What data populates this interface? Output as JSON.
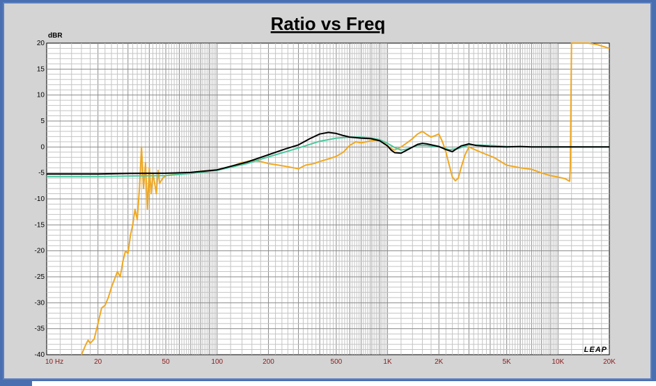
{
  "chart_data": {
    "type": "line",
    "title": "Ratio vs Freq",
    "ylabel": "dBR",
    "xlabel": "",
    "x_scale": "log",
    "xlim": [
      10,
      20000
    ],
    "ylim": [
      -40,
      20
    ],
    "grid": true,
    "legend": "none",
    "watermark": "LEAP",
    "x_ticks": [
      {
        "value": 10,
        "label": "10  Hz"
      },
      {
        "value": 20,
        "label": "20"
      },
      {
        "value": 50,
        "label": "50"
      },
      {
        "value": 100,
        "label": "100"
      },
      {
        "value": 200,
        "label": "200"
      },
      {
        "value": 500,
        "label": "500"
      },
      {
        "value": 1000,
        "label": "1K"
      },
      {
        "value": 2000,
        "label": "2K"
      },
      {
        "value": 5000,
        "label": "5K"
      },
      {
        "value": 10000,
        "label": "10K"
      },
      {
        "value": 20000,
        "label": "20K"
      }
    ],
    "y_ticks": [
      20,
      15,
      10,
      5,
      0,
      -5,
      -10,
      -15,
      -20,
      -25,
      -30,
      -35,
      -40
    ],
    "series": [
      {
        "color": "#f0a820",
        "points": [
          [
            16,
            -40
          ],
          [
            17,
            -38
          ],
          [
            17.5,
            -37.2
          ],
          [
            18,
            -37.8
          ],
          [
            19,
            -37
          ],
          [
            20,
            -34
          ],
          [
            21,
            -31
          ],
          [
            22,
            -30.5
          ],
          [
            23,
            -29
          ],
          [
            24,
            -27
          ],
          [
            25,
            -25.5
          ],
          [
            26,
            -24
          ],
          [
            27,
            -25
          ],
          [
            28,
            -22
          ],
          [
            29,
            -20
          ],
          [
            30,
            -20.5
          ],
          [
            31,
            -17
          ],
          [
            32,
            -15
          ],
          [
            33,
            -12
          ],
          [
            34,
            -14
          ],
          [
            35,
            -8
          ],
          [
            36,
            0
          ],
          [
            37,
            -8
          ],
          [
            38,
            -3
          ],
          [
            39,
            -12
          ],
          [
            40,
            -4
          ],
          [
            41,
            -9
          ],
          [
            42,
            -5
          ],
          [
            44,
            -9
          ],
          [
            45,
            -4.5
          ],
          [
            46,
            -7
          ],
          [
            48,
            -6
          ],
          [
            50,
            -5.5
          ],
          [
            55,
            -5.3
          ],
          [
            60,
            -5.1
          ],
          [
            70,
            -4.9
          ],
          [
            80,
            -4.7
          ],
          [
            100,
            -4.4
          ],
          [
            120,
            -3.8
          ],
          [
            140,
            -3
          ],
          [
            160,
            -2.6
          ],
          [
            180,
            -2.8
          ],
          [
            200,
            -3.2
          ],
          [
            230,
            -3.5
          ],
          [
            260,
            -3.8
          ],
          [
            300,
            -4.2
          ],
          [
            330,
            -3.5
          ],
          [
            370,
            -3.2
          ],
          [
            400,
            -2.8
          ],
          [
            450,
            -2.3
          ],
          [
            500,
            -1.8
          ],
          [
            550,
            -1
          ],
          [
            600,
            0.3
          ],
          [
            650,
            1
          ],
          [
            700,
            0.8
          ],
          [
            750,
            1
          ],
          [
            800,
            1.2
          ],
          [
            850,
            1.3
          ],
          [
            900,
            1.2
          ],
          [
            950,
            0.8
          ],
          [
            1000,
            0.2
          ],
          [
            1050,
            -0.3
          ],
          [
            1100,
            -0.6
          ],
          [
            1200,
            0
          ],
          [
            1300,
            0.8
          ],
          [
            1400,
            1.6
          ],
          [
            1500,
            2.5
          ],
          [
            1600,
            3
          ],
          [
            1700,
            2.4
          ],
          [
            1800,
            1.9
          ],
          [
            1900,
            2.2
          ],
          [
            2000,
            2.5
          ],
          [
            2100,
            1
          ],
          [
            2200,
            -1
          ],
          [
            2300,
            -3.5
          ],
          [
            2400,
            -5.8
          ],
          [
            2500,
            -6.5
          ],
          [
            2600,
            -6
          ],
          [
            2700,
            -4
          ],
          [
            2850,
            -1.5
          ],
          [
            3000,
            0
          ],
          [
            3300,
            -0.6
          ],
          [
            3700,
            -1.3
          ],
          [
            4200,
            -2
          ],
          [
            5000,
            -3.5
          ],
          [
            6000,
            -4
          ],
          [
            7000,
            -4.3
          ],
          [
            8000,
            -5
          ],
          [
            9000,
            -5.5
          ],
          [
            10000,
            -5.8
          ],
          [
            11000,
            -6.1
          ],
          [
            11700,
            -6.6
          ],
          [
            11800,
            -4
          ],
          [
            12000,
            20
          ],
          [
            13000,
            20
          ],
          [
            15000,
            20
          ],
          [
            17000,
            19.7
          ],
          [
            20000,
            19
          ]
        ]
      },
      {
        "color": "#4cc8a0",
        "points": [
          [
            10,
            -5.7
          ],
          [
            20,
            -5.7
          ],
          [
            30,
            -5.6
          ],
          [
            50,
            -5.5
          ],
          [
            70,
            -5.1
          ],
          [
            100,
            -4.5
          ],
          [
            150,
            -3.2
          ],
          [
            200,
            -1.9
          ],
          [
            300,
            -0.2
          ],
          [
            400,
            1.1
          ],
          [
            500,
            1.7
          ],
          [
            600,
            1.9
          ],
          [
            700,
            1.9
          ],
          [
            800,
            1.7
          ],
          [
            900,
            1.4
          ],
          [
            1000,
            0.7
          ],
          [
            1100,
            -0.1
          ],
          [
            1200,
            -0.6
          ],
          [
            1300,
            -0.4
          ],
          [
            1500,
            0.3
          ],
          [
            1700,
            0.3
          ],
          [
            2000,
            0
          ],
          [
            2300,
            -0.5
          ],
          [
            2600,
            -0.3
          ],
          [
            3000,
            0.4
          ],
          [
            4000,
            0.3
          ],
          [
            5000,
            0.1
          ],
          [
            7000,
            0
          ],
          [
            10000,
            0
          ],
          [
            20000,
            0
          ]
        ]
      },
      {
        "color": "#000000",
        "points": [
          [
            10,
            -5.2
          ],
          [
            20,
            -5.2
          ],
          [
            30,
            -5.1
          ],
          [
            50,
            -5.05
          ],
          [
            70,
            -4.9
          ],
          [
            100,
            -4.4
          ],
          [
            150,
            -2.9
          ],
          [
            200,
            -1.5
          ],
          [
            250,
            -0.4
          ],
          [
            300,
            0.4
          ],
          [
            350,
            1.6
          ],
          [
            400,
            2.5
          ],
          [
            450,
            2.8
          ],
          [
            500,
            2.6
          ],
          [
            550,
            2.2
          ],
          [
            600,
            1.9
          ],
          [
            700,
            1.7
          ],
          [
            800,
            1.6
          ],
          [
            900,
            1.2
          ],
          [
            1000,
            0.2
          ],
          [
            1050,
            -0.6
          ],
          [
            1100,
            -1.1
          ],
          [
            1200,
            -1.2
          ],
          [
            1300,
            -0.6
          ],
          [
            1500,
            0.5
          ],
          [
            1600,
            0.7
          ],
          [
            1700,
            0.6
          ],
          [
            2000,
            0.1
          ],
          [
            2200,
            -0.5
          ],
          [
            2400,
            -0.9
          ],
          [
            2500,
            -0.5
          ],
          [
            2700,
            0.2
          ],
          [
            3000,
            0.6
          ],
          [
            3300,
            0.3
          ],
          [
            4000,
            0.1
          ],
          [
            5000,
            0
          ],
          [
            6000,
            0.1
          ],
          [
            7000,
            0
          ],
          [
            10000,
            0
          ],
          [
            20000,
            0
          ]
        ]
      }
    ]
  }
}
